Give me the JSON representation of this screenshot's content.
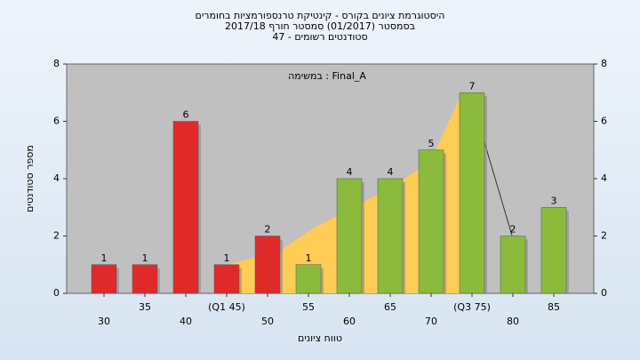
{
  "chart_data": {
    "type": "bar",
    "title": [
      "היסטוגרמת ציונים בקורס - קינטיקת טרנספורמציות בחומרים",
      "בסמסטר (01/2017) סמסטר חורף 2017/18",
      "סטודנטים רשומים - 47"
    ],
    "annotation": "במשימה : Final_A",
    "y_label": "מספר סטודנטים",
    "x_label": "טווח ציונים",
    "categories": [
      "30",
      "35",
      "40",
      "(Q1 45)",
      "50",
      "55",
      "60",
      "65",
      "70",
      "(Q3 75)",
      "80",
      "85"
    ],
    "values": [
      1,
      1,
      6,
      1,
      2,
      1,
      4,
      4,
      5,
      7,
      2,
      3
    ],
    "colors": [
      "#e02a2a",
      "#e02a2a",
      "#e02a2a",
      "#e02a2a",
      "#e02a2a",
      "#8cba3c",
      "#8cba3c",
      "#8cba3c",
      "#8cba3c",
      "#8cba3c",
      "#8cba3c",
      "#8cba3c"
    ],
    "ylim": [
      0,
      8
    ],
    "yticks": [
      0,
      2,
      4,
      6,
      8
    ],
    "grid": true
  }
}
